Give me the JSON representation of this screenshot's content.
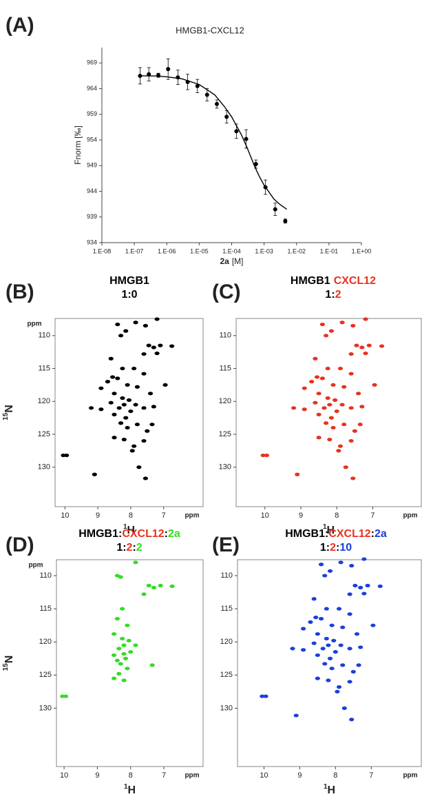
{
  "chart_data": [
    {
      "type": "scatter",
      "panel_label": "(A)",
      "title": "HMGB1-CXCL12",
      "y_label": "Fnorm [‰]",
      "x_label_parts": [
        "2a",
        "[M]"
      ],
      "log_x": true,
      "xlim": [
        1e-08,
        1
      ],
      "xticks": [
        {
          "value": 1e-08,
          "label": "1.E-08"
        },
        {
          "value": 1e-07,
          "label": "1.E-07"
        },
        {
          "value": 1e-06,
          "label": "1.E-06"
        },
        {
          "value": 1e-05,
          "label": "1.E-05"
        },
        {
          "value": 0.0001,
          "label": "1.E-04"
        },
        {
          "value": 0.001,
          "label": "1.E-03"
        },
        {
          "value": 0.01,
          "label": "1.E-02"
        },
        {
          "value": 0.1,
          "label": "1.E-01"
        },
        {
          "value": 1,
          "label": "1.E+00"
        }
      ],
      "ylim": [
        934,
        972
      ],
      "yticks": [
        934,
        939,
        944,
        949,
        954,
        959,
        964,
        969
      ],
      "series": [
        {
          "mode": "markers",
          "color": "#000000",
          "x": [
            1.5e-07,
            2.8e-07,
            5.5e-07,
            1.1e-06,
            2.2e-06,
            4.4e-06,
            8.8e-06,
            1.75e-05,
            3.5e-05,
            7e-05,
            0.00014,
            0.00028,
            0.00056,
            0.0011,
            0.0022,
            0.0045
          ],
          "values": [
            966.5,
            966.8,
            966.6,
            967.8,
            966.2,
            965.3,
            964.5,
            962.8,
            961,
            958.5,
            955.7,
            954.2,
            949.3,
            944.8,
            940.5,
            938.2
          ],
          "errors": [
            1.6,
            1.3,
            0.4,
            2,
            1.4,
            1.5,
            1.3,
            1.2,
            0.8,
            1.2,
            1.4,
            1.8,
            0.8,
            1.4,
            1.2,
            0.4
          ]
        },
        {
          "mode": "line",
          "color": "#000000",
          "x": [
            1.5e-07,
            5e-07,
            1e-06,
            3e-06,
            1e-05,
            3e-05,
            6e-05,
            0.0001,
            0.0002,
            0.0003,
            0.0005,
            0.0007,
            0.001,
            0.002,
            0.003,
            0.005
          ],
          "values": [
            966.5,
            966.45,
            966.3,
            965.9,
            964.8,
            962.8,
            960.5,
            958.5,
            955,
            952.5,
            949,
            947,
            945.2,
            942.5,
            941.5,
            940.5
          ]
        }
      ]
    },
    {
      "type": "scatter",
      "panel_label": "(B)",
      "title_lines": [
        [
          {
            "text": "HMGB1",
            "color": "#000000"
          }
        ],
        [
          {
            "text": "1:0",
            "color": "#000000"
          }
        ]
      ],
      "x_label_sup": "1",
      "x_label": "H",
      "y_label_sup": "15",
      "y_label": "N",
      "x_unit": "ppm",
      "y_unit": "ppm",
      "xlim": [
        10.3,
        5.8
      ],
      "ylim": [
        136,
        107.4
      ],
      "xticks": [
        10,
        9,
        8,
        7
      ],
      "yticks": [
        110,
        115,
        120,
        125,
        130
      ],
      "series": [
        {
          "color": "#000000",
          "x": [
            10.05,
            9.95,
            9.1,
            8.4,
            8.15,
            8.3,
            7.85,
            7.55,
            7.2,
            7.45,
            7.3,
            7.1,
            6.75,
            7.6,
            7.2,
            8.6,
            8.25,
            7.9,
            7.6,
            8.4,
            8.7,
            8.1,
            7.8,
            6.95,
            8.9,
            8.5,
            8.25,
            8.05,
            8.2,
            8.35,
            8.0,
            8.5,
            8.15,
            7.85,
            7.6,
            7.3,
            9.2,
            8.9,
            8.6,
            8.3,
            8.1,
            7.8,
            7.5,
            8.5,
            8.2,
            7.6,
            7.9,
            7.35,
            7.4,
            8.55,
            7.75,
            7.55,
            7.95
          ],
          "values": [
            128.2,
            128.2,
            131.1,
            108.3,
            109.3,
            110,
            108,
            108.5,
            107.5,
            111.5,
            111.8,
            111.5,
            111.6,
            112.8,
            112.7,
            113.5,
            115,
            115,
            115.8,
            116.5,
            117,
            117.5,
            117.8,
            117.5,
            118,
            118.8,
            119.5,
            119.8,
            120.5,
            121,
            121.5,
            122,
            122.5,
            120.5,
            121,
            120.8,
            121,
            121.2,
            120.2,
            123.3,
            124,
            123.5,
            124.5,
            125.5,
            125.8,
            126,
            126.8,
            123.5,
            118.8,
            116.3,
            130,
            131.7,
            127.5
          ]
        }
      ]
    },
    {
      "type": "scatter",
      "panel_label": "(C)",
      "title_lines": [
        [
          {
            "text": "HMGB1",
            "color": "#000000"
          },
          {
            "text": "CXCL12",
            "color": "#e8321e"
          }
        ],
        [
          {
            "text": "1",
            "color": "#000000"
          },
          {
            "text": ":",
            "color": "#000000"
          },
          {
            "text": "2",
            "color": "#e8321e"
          }
        ]
      ],
      "x_label_sup": "1",
      "x_label": "H",
      "x_unit": "ppm",
      "xlim": [
        10.8,
        5.65
      ],
      "ylim": [
        136,
        107.4
      ],
      "xticks": [
        10,
        9,
        8,
        7
      ],
      "yticks": [
        110,
        115,
        120,
        125,
        130
      ],
      "series": [
        {
          "color": "#e8321e",
          "x": [
            10.05,
            9.95,
            9.1,
            8.4,
            8.15,
            8.3,
            7.85,
            7.55,
            7.2,
            7.45,
            7.3,
            7.1,
            6.75,
            7.6,
            7.2,
            8.6,
            8.25,
            7.9,
            7.6,
            8.4,
            8.7,
            8.1,
            7.8,
            6.95,
            8.9,
            8.5,
            8.25,
            8.05,
            8.2,
            8.35,
            8.0,
            8.5,
            8.15,
            7.85,
            7.6,
            7.3,
            9.2,
            8.9,
            8.6,
            8.3,
            8.1,
            7.8,
            7.5,
            8.5,
            8.2,
            7.6,
            7.9,
            7.35,
            7.4,
            8.55,
            7.75,
            7.55,
            7.95
          ],
          "values": [
            128.2,
            128.2,
            131.1,
            108.3,
            109.3,
            110,
            108,
            108.5,
            107.5,
            111.5,
            111.8,
            111.5,
            111.6,
            112.8,
            112.7,
            113.5,
            115,
            115,
            115.8,
            116.5,
            117,
            117.5,
            117.8,
            117.5,
            118,
            118.8,
            119.5,
            119.8,
            120.5,
            121,
            121.5,
            122,
            122.5,
            120.5,
            121,
            120.8,
            121,
            121.2,
            120.2,
            123.3,
            124,
            123.5,
            124.5,
            125.5,
            125.8,
            126,
            126.8,
            123.5,
            118.8,
            116.3,
            130,
            131.7,
            127.5
          ]
        }
      ]
    },
    {
      "type": "scatter",
      "panel_label": "(D)",
      "title_lines": [
        [
          {
            "text": "HMGB1",
            "color": "#000000"
          },
          {
            "text": ":",
            "color": "#000000"
          },
          {
            "text": "CXCL12",
            "color": "#e8321e"
          },
          {
            "text": ":",
            "color": "#000000"
          },
          {
            "text": "2a",
            "color": "#33dd22"
          }
        ],
        [
          {
            "text": "1",
            "color": "#000000"
          },
          {
            "text": ":",
            "color": "#000000"
          },
          {
            "text": "2",
            "color": "#e8321e"
          },
          {
            "text": ":",
            "color": "#000000"
          },
          {
            "text": "2",
            "color": "#33dd22"
          }
        ]
      ],
      "x_label_sup": "1",
      "x_label": "H",
      "y_label_sup": "15",
      "y_label": "N",
      "x_unit": "ppm",
      "y_unit": "ppm",
      "xlim": [
        10.23,
        5.82
      ],
      "ylim": [
        138.8,
        107.6
      ],
      "xticks": [
        10,
        9,
        8,
        7
      ],
      "yticks": [
        110,
        115,
        120,
        125,
        130
      ],
      "series": [
        {
          "color": "#33dd22",
          "x": [
            10.05,
            9.95,
            8.4,
            8.3,
            7.85,
            7.45,
            7.3,
            7.1,
            6.75,
            7.6,
            8.25,
            8.4,
            8.1,
            8.5,
            8.25,
            8.05,
            8.2,
            8.35,
            8.0,
            8.5,
            8.15,
            7.85,
            8.3,
            8.1,
            8.5,
            8.2,
            7.35,
            8.4,
            8.35,
            8.2
          ],
          "values": [
            128.2,
            128.2,
            110,
            110.2,
            108,
            111.5,
            111.8,
            111.5,
            111.6,
            112.8,
            115,
            116.5,
            117.5,
            118.8,
            119.5,
            119.8,
            120.5,
            121,
            121.5,
            122,
            122.5,
            120.5,
            123.3,
            124,
            125.5,
            125.8,
            123.5,
            122.8,
            124.8,
            121.8
          ]
        }
      ]
    },
    {
      "type": "scatter",
      "panel_label": "(E)",
      "title_lines": [
        [
          {
            "text": "HMGB1",
            "color": "#000000"
          },
          {
            "text": ":",
            "color": "#000000"
          },
          {
            "text": "CXCL12",
            "color": "#e8321e"
          },
          {
            "text": ":",
            "color": "#000000"
          },
          {
            "text": "2a",
            "color": "#1a3fdc"
          }
        ],
        [
          {
            "text": "1",
            "color": "#000000"
          },
          {
            "text": ":",
            "color": "#000000"
          },
          {
            "text": "2",
            "color": "#e8321e"
          },
          {
            "text": ":",
            "color": "#000000"
          },
          {
            "text": "10",
            "color": "#1a3fdc"
          }
        ]
      ],
      "x_label_sup": "1",
      "x_label": "H",
      "x_unit": "ppm",
      "xlim": [
        10.74,
        5.6
      ],
      "ylim": [
        138.8,
        107.6
      ],
      "xticks": [
        10,
        9,
        8,
        7
      ],
      "yticks": [
        110,
        115,
        120,
        125,
        130
      ],
      "series": [
        {
          "color": "#1a3fdc",
          "x": [
            10.05,
            9.95,
            9.1,
            8.4,
            8.15,
            8.3,
            7.85,
            7.55,
            7.2,
            7.45,
            7.3,
            7.1,
            6.75,
            7.6,
            7.2,
            8.6,
            8.25,
            7.9,
            7.6,
            8.4,
            8.7,
            8.1,
            7.8,
            6.95,
            8.9,
            8.5,
            8.25,
            8.05,
            8.2,
            8.35,
            8.0,
            8.5,
            8.15,
            7.85,
            7.6,
            7.3,
            9.2,
            8.9,
            8.6,
            8.3,
            8.1,
            7.8,
            7.5,
            8.5,
            8.2,
            7.6,
            7.9,
            7.35,
            7.4,
            8.55,
            7.75,
            7.55,
            7.95
          ],
          "values": [
            128.2,
            128.2,
            131.1,
            108.3,
            109.3,
            110,
            108,
            108.5,
            107.5,
            111.5,
            111.8,
            111.5,
            111.6,
            112.8,
            112.7,
            113.5,
            115,
            115,
            115.8,
            116.5,
            117,
            117.5,
            117.8,
            117.5,
            118,
            118.8,
            119.5,
            119.8,
            120.5,
            121,
            121.5,
            122,
            122.5,
            120.5,
            121,
            120.8,
            121,
            121.2,
            120.2,
            123.3,
            124,
            123.5,
            124.5,
            125.5,
            125.8,
            126,
            126.8,
            123.5,
            118.8,
            116.3,
            130,
            131.7,
            127.5
          ]
        }
      ]
    }
  ]
}
